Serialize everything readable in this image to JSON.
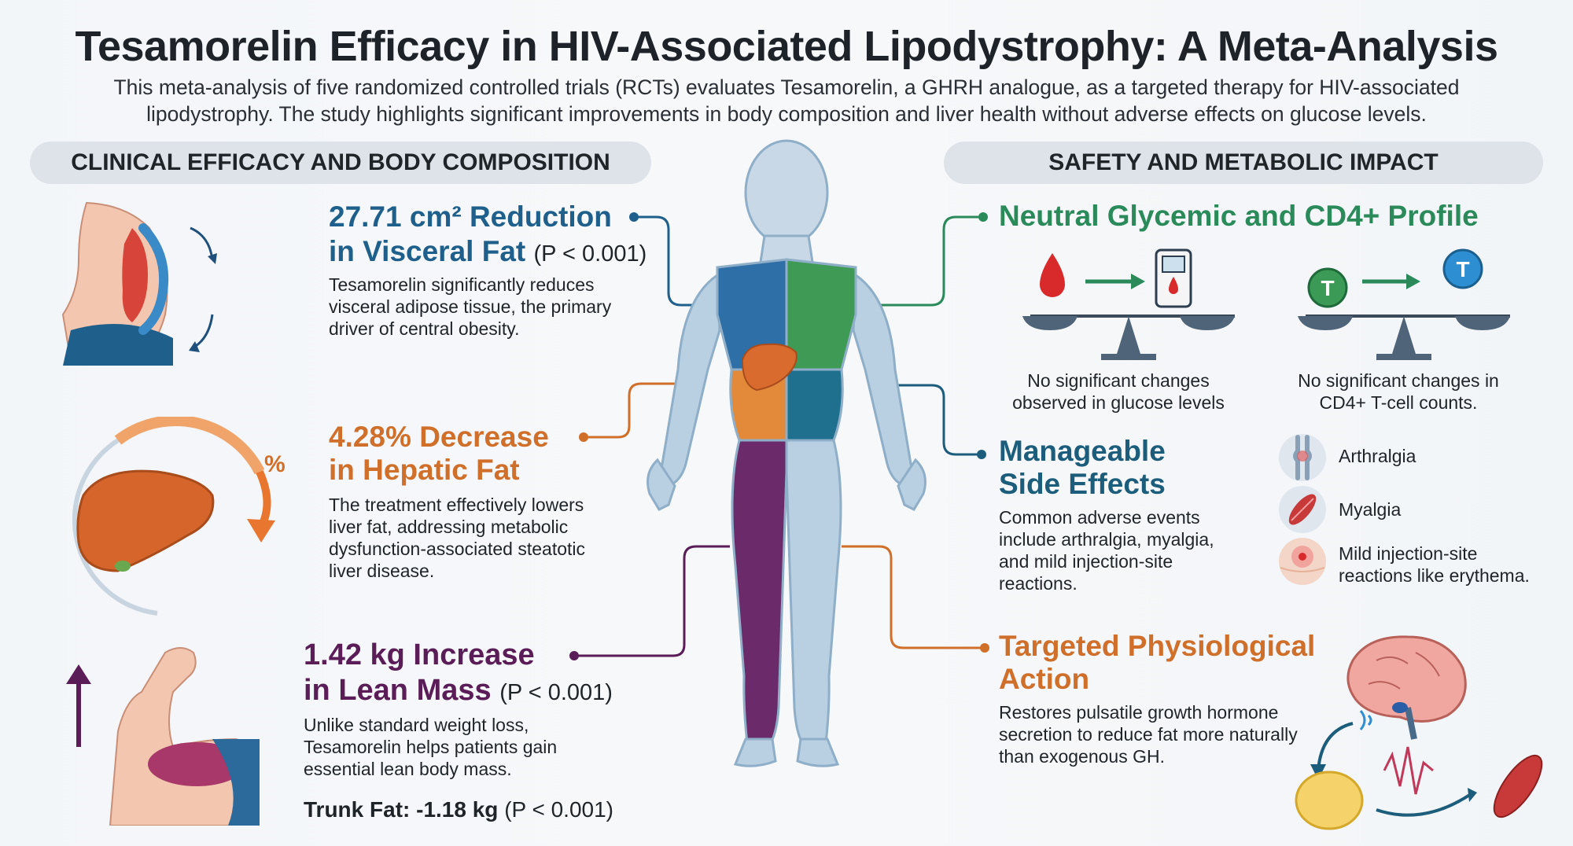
{
  "title": "Tesamorelin Efficacy in HIV-Associated Lipodystrophy: A Meta-Analysis",
  "intro": "This meta-analysis of five randomized controlled trials (RCTs) evaluates Tesamorelin, a GHRH analogue, as a targeted therapy for HIV-associated lipodystrophy. The study highlights significant improvements in body composition and liver health without adverse effects on glucose levels.",
  "left_header": "CLINICAL EFFICACY AND BODY COMPOSITION",
  "right_header": "SAFETY AND METABOLIC IMPACT",
  "visceral": {
    "line1": "27.71 cm² Reduction",
    "line2": "in Visceral Fat",
    "p": "(P < 0.001)",
    "desc": "Tesamorelin significantly reduces visceral adipose tissue, the primary driver of central obesity."
  },
  "hepatic": {
    "line1": "4.28% Decrease",
    "line2": "in Hepatic Fat",
    "desc": "The treatment effectively lowers liver fat, addressing metabolic dysfunction-associated steatotic liver disease.",
    "percent_symbol": "%"
  },
  "lean": {
    "line1": "1.42 kg Increase",
    "line2": "in Lean Mass",
    "p": "(P < 0.001)",
    "desc": "Unlike standard weight loss, Tesamorelin helps patients gain essential lean body mass.",
    "trunk_label": "Trunk Fat: -1.18 kg",
    "trunk_p": "(P < 0.001)"
  },
  "glycemic": {
    "heading": "Neutral Glycemic and CD4+ Profile",
    "glucose_caption": "No significant changes observed in glucose levels",
    "cd4_caption": "No significant changes in CD4+ T-cell counts.",
    "t_label": "T"
  },
  "side_effects": {
    "heading_line1": "Manageable",
    "heading_line2": "Side Effects",
    "desc": "Common adverse events include arthralgia, myalgia, and mild injection-site reactions.",
    "items": [
      "Arthralgia",
      "Myalgia",
      "Mild injection-site reactions like erythema."
    ]
  },
  "action": {
    "heading_line1": "Targeted Physiological",
    "heading_line2": "Action",
    "desc": "Restores pulsatile growth hormone secretion to reduce fat more naturally than exogenous GH."
  },
  "colors": {
    "blue": "#1f5f8b",
    "orange": "#d06f2a",
    "purple": "#5a1d57",
    "green": "#2a8a5a",
    "teal": "#1d5d7c"
  }
}
